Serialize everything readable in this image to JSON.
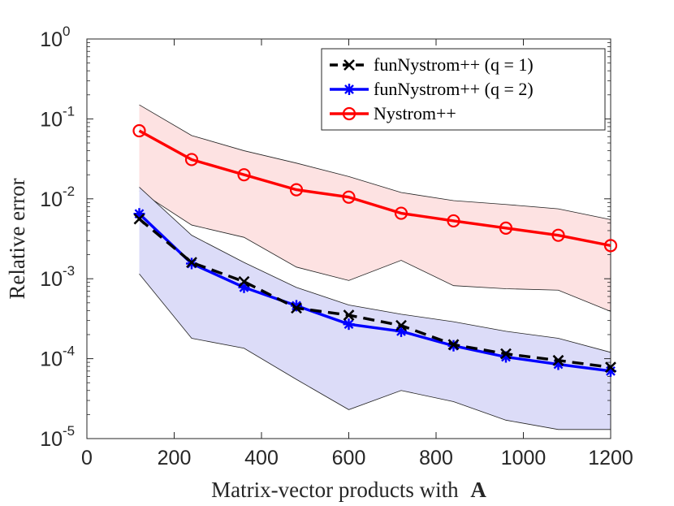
{
  "chart_data": {
    "type": "line",
    "yscale": "log",
    "xlabel_prefix": "Matrix-vector products with",
    "xlabel_symbol": "A",
    "ylabel": "Relative error",
    "xlim": [
      0,
      1200
    ],
    "ylim": [
      1e-05,
      1
    ],
    "x_ticks": [
      "0",
      "200",
      "400",
      "600",
      "800",
      "1000",
      "1200"
    ],
    "y_ticks": [
      {
        "base": "10",
        "exp": "-5"
      },
      {
        "base": "10",
        "exp": "-4"
      },
      {
        "base": "10",
        "exp": "-3"
      },
      {
        "base": "10",
        "exp": "-2"
      },
      {
        "base": "10",
        "exp": "-1"
      },
      {
        "base": "10",
        "exp": "0"
      }
    ],
    "x": [
      120,
      240,
      360,
      480,
      600,
      720,
      840,
      960,
      1080,
      1200
    ],
    "series": [
      {
        "name": "funNystrom++ (q = 1)",
        "color": "#000000",
        "style": "dashed",
        "marker": "x",
        "values": [
          0.0056,
          0.0016,
          0.00092,
          0.00043,
          0.00035,
          0.00026,
          0.00015,
          0.000115,
          9.5e-05,
          7.8e-05
        ]
      },
      {
        "name": "funNystrom++ (q = 2)",
        "color": "#0000ff",
        "style": "solid",
        "marker": "asterisk",
        "values": [
          0.0065,
          0.00155,
          0.00078,
          0.00046,
          0.00027,
          0.00022,
          0.000145,
          0.000105,
          8.5e-05,
          7e-05
        ]
      },
      {
        "name": "Nystrom++",
        "color": "#ff0000",
        "style": "solid",
        "marker": "circle",
        "values": [
          0.071,
          0.031,
          0.02,
          0.013,
          0.0105,
          0.0066,
          0.0053,
          0.0043,
          0.0035,
          0.0026
        ]
      }
    ],
    "bands": [
      {
        "name": "Nystrom++ range",
        "fill": "#fde2e2",
        "upper": [
          0.15,
          0.062,
          0.04,
          0.028,
          0.019,
          0.012,
          0.0095,
          0.0085,
          0.0075,
          0.0055
        ],
        "lower": [
          0.0125,
          0.0047,
          0.0033,
          0.0014,
          0.00095,
          0.0017,
          0.00082,
          0.00075,
          0.00072,
          0.00039
        ]
      },
      {
        "name": "funNystrom++ range",
        "fill": "#dcdcf8",
        "upper": [
          0.014,
          0.0035,
          0.0016,
          0.00078,
          0.00047,
          0.00036,
          0.00029,
          0.00022,
          0.00018,
          0.00012
        ],
        "lower": [
          0.00115,
          0.00018,
          0.000135,
          5.5e-05,
          2.3e-05,
          4e-05,
          2.9e-05,
          1.7e-05,
          1.3e-05,
          1.3e-05
        ]
      }
    ],
    "legend": {
      "position": "top-right"
    }
  }
}
